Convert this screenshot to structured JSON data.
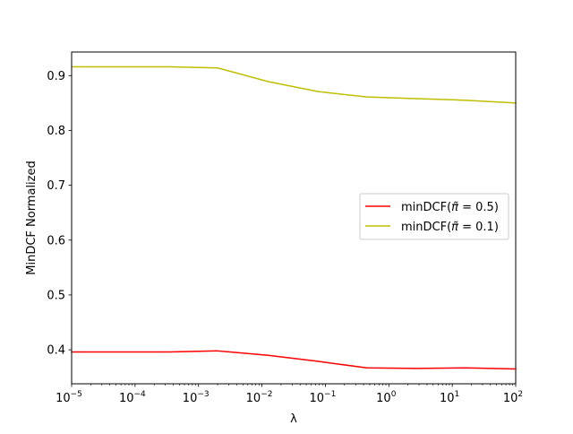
{
  "chart_data": {
    "type": "line",
    "title": "",
    "xlabel": "λ",
    "ylabel": "MinDCF Normalized",
    "xscale": "log",
    "xlim": [
      1e-05,
      100
    ],
    "ylim": [
      0.338,
      0.943
    ],
    "grid": false,
    "legend_position": "center-right",
    "x": [
      1e-05,
      0.00035,
      0.002,
      0.0125,
      0.075,
      0.45,
      2.75,
      16.5,
      100
    ],
    "series": [
      {
        "name": "minDCF(π̃ = 0.5)",
        "legend_label": {
          "pre": "minDCF(",
          "pi": "π̃",
          "post": " = 0.5)"
        },
        "color": "#ff0000",
        "values": [
          0.396,
          0.396,
          0.398,
          0.39,
          0.379,
          0.367,
          0.366,
          0.367,
          0.365
        ]
      },
      {
        "name": "minDCF(π̃ = 0.1)",
        "legend_label": {
          "pre": "minDCF(",
          "pi": "π̃",
          "post": " = 0.1)"
        },
        "color": "#bfbf00",
        "values": [
          0.916,
          0.916,
          0.914,
          0.889,
          0.871,
          0.861,
          0.858,
          0.855,
          0.85
        ]
      }
    ],
    "yticks": [
      {
        "value": 0.4,
        "label": "0.4"
      },
      {
        "value": 0.5,
        "label": "0.5"
      },
      {
        "value": 0.6,
        "label": "0.6"
      },
      {
        "value": 0.7,
        "label": "0.7"
      },
      {
        "value": 0.8,
        "label": "0.8"
      },
      {
        "value": 0.9,
        "label": "0.9"
      }
    ],
    "xticks": [
      {
        "value": 1e-05,
        "base": "10",
        "exp": "−5"
      },
      {
        "value": 0.0001,
        "base": "10",
        "exp": "−4"
      },
      {
        "value": 0.001,
        "base": "10",
        "exp": "−3"
      },
      {
        "value": 0.01,
        "base": "10",
        "exp": "−2"
      },
      {
        "value": 0.1,
        "base": "10",
        "exp": "−1"
      },
      {
        "value": 1,
        "base": "10",
        "exp": "0"
      },
      {
        "value": 10,
        "base": "10",
        "exp": "1"
      },
      {
        "value": 100,
        "base": "10",
        "exp": "2"
      }
    ]
  }
}
